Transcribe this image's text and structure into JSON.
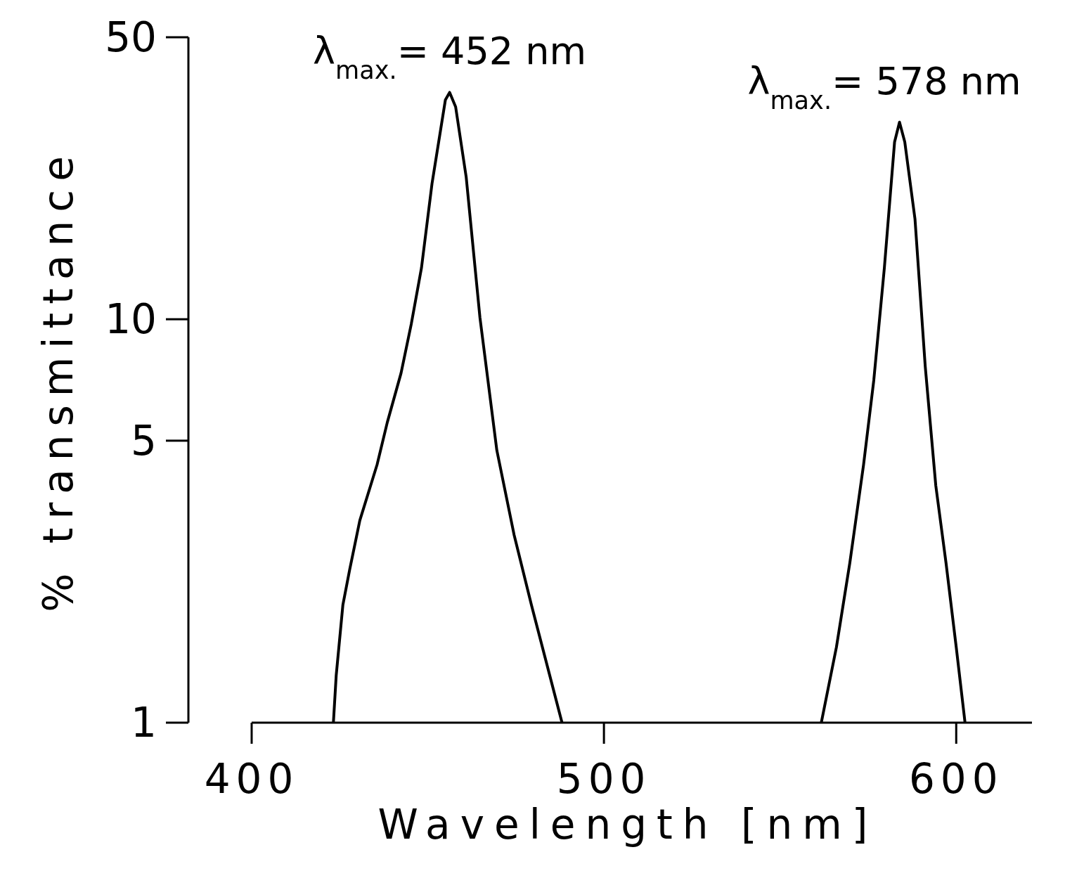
{
  "chart_data": {
    "type": "line",
    "xlabel": "Wavelength [nm]",
    "ylabel": "% transmittance",
    "log": "y",
    "xlim": [
      400,
      621.5
    ],
    "ylim": [
      1,
      50
    ],
    "xticks": [
      400,
      500,
      600
    ],
    "yticks": [
      1,
      5,
      10,
      50
    ],
    "marker": "none",
    "line_style": "solid",
    "series": [
      {
        "color": "#000000",
        "x": [
          423.2,
          424.0,
          425.9,
          427.8,
          430.7,
          435.6,
          438.5,
          442.4,
          445.3,
          448.2,
          451.2,
          455.0,
          456.2,
          457.9,
          460.9,
          464.8,
          469.6,
          474.5,
          479.4,
          488.1
        ],
        "values": [
          1,
          1.31,
          1.96,
          2.39,
          3.17,
          4.36,
          5.55,
          7.35,
          9.72,
          13.4,
          21.7,
          35.0,
          36.5,
          33.6,
          22.5,
          10.1,
          4.73,
          2.92,
          1.96,
          1
        ]
      },
      {
        "color": "#000000",
        "x": [
          561.7,
          566.0,
          569.8,
          573.7,
          576.6,
          579.6,
          582.5,
          583.9,
          585.4,
          588.3,
          591.2,
          594.2,
          597.1,
          600.0,
          602.5
        ],
        "values": [
          1,
          1.54,
          2.49,
          4.36,
          7.06,
          13.4,
          27.5,
          30.8,
          27.5,
          17.7,
          7.65,
          3.87,
          2.49,
          1.54,
          1
        ]
      }
    ],
    "annotations": [
      {
        "text": "λ$_{max.}$= 452 nm",
        "x": 456.2,
        "y": 36.5
      },
      {
        "text": "λ$_{max.}$= 578 nm",
        "x": 583.9,
        "y": 30.8
      }
    ]
  }
}
